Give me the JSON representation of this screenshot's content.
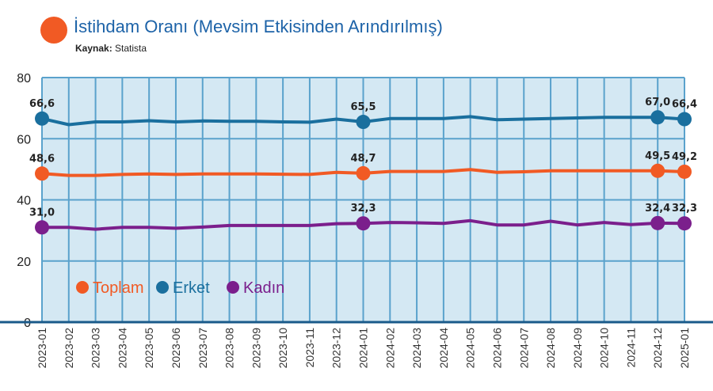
{
  "header": {
    "title": "İstihdam Oranı (Mevsim Etkisinden Arındırılmış)",
    "source_label": "Kaynak:",
    "source_value": "Statista"
  },
  "chart_data": {
    "type": "line",
    "title": "İstihdam Oranı (Mevsim Etkisinden Arındırılmış)",
    "xlabel": "",
    "ylabel": "",
    "ylim": [
      0,
      80
    ],
    "yticks": [
      0,
      20,
      40,
      60,
      80
    ],
    "grid": true,
    "legend_position": "bottom-left",
    "categories": [
      "2023-01",
      "2023-02",
      "2023-03",
      "2023-04",
      "2023-05",
      "2023-06",
      "2023-07",
      "2023-08",
      "2023-09",
      "2023-10",
      "2023-11",
      "2023-12",
      "2024-01",
      "2024-02",
      "2024-03",
      "2024-04",
      "2024-05",
      "2024-06",
      "2024-07",
      "2024-08",
      "2024-09",
      "2024-10",
      "2024-11",
      "2024-12",
      "2025-01"
    ],
    "series": [
      {
        "name": "Toplam",
        "color": "#f15a24",
        "values": [
          48.6,
          48.0,
          48.0,
          48.3,
          48.5,
          48.3,
          48.5,
          48.5,
          48.5,
          48.4,
          48.3,
          49.0,
          48.7,
          49.3,
          49.3,
          49.3,
          49.9,
          49.0,
          49.2,
          49.5,
          49.5,
          49.5,
          49.5,
          49.5,
          49.2
        ],
        "labels": [
          "48,6",
          "",
          "",
          "",
          "",
          "",
          "",
          "",
          "",
          "",
          "",
          "",
          "48,7",
          "",
          "",
          "",
          "",
          "",
          "",
          "",
          "",
          "",
          "",
          "49,5",
          "49,2"
        ]
      },
      {
        "name": "Erket",
        "color": "#1a6f9e",
        "values": [
          66.6,
          64.6,
          65.5,
          65.5,
          65.9,
          65.5,
          65.8,
          65.7,
          65.7,
          65.5,
          65.4,
          66.4,
          65.5,
          66.6,
          66.6,
          66.6,
          67.2,
          66.2,
          66.4,
          66.6,
          66.8,
          67.0,
          67.0,
          67.0,
          66.4
        ],
        "labels": [
          "66,6",
          "",
          "",
          "",
          "",
          "",
          "",
          "",
          "",
          "",
          "",
          "",
          "65,5",
          "",
          "",
          "",
          "",
          "",
          "",
          "",
          "",
          "",
          "",
          "67,0",
          "66,4"
        ]
      },
      {
        "name": "Kadın",
        "color": "#7b1f8c",
        "values": [
          31.0,
          31.0,
          30.4,
          31.0,
          31.0,
          30.7,
          31.1,
          31.6,
          31.6,
          31.6,
          31.6,
          32.2,
          32.3,
          32.6,
          32.5,
          32.3,
          33.2,
          31.8,
          31.8,
          33.0,
          31.8,
          32.6,
          31.9,
          32.4,
          32.3
        ],
        "labels": [
          "31,0",
          "",
          "",
          "",
          "",
          "",
          "",
          "",
          "",
          "",
          "",
          "",
          "32,3",
          "",
          "",
          "",
          "",
          "",
          "",
          "",
          "",
          "",
          "",
          "32,4",
          "32,3"
        ]
      }
    ],
    "highlight_categories": [
      "2023-01",
      "2024-01",
      "2024-12",
      "2025-01"
    ]
  }
}
